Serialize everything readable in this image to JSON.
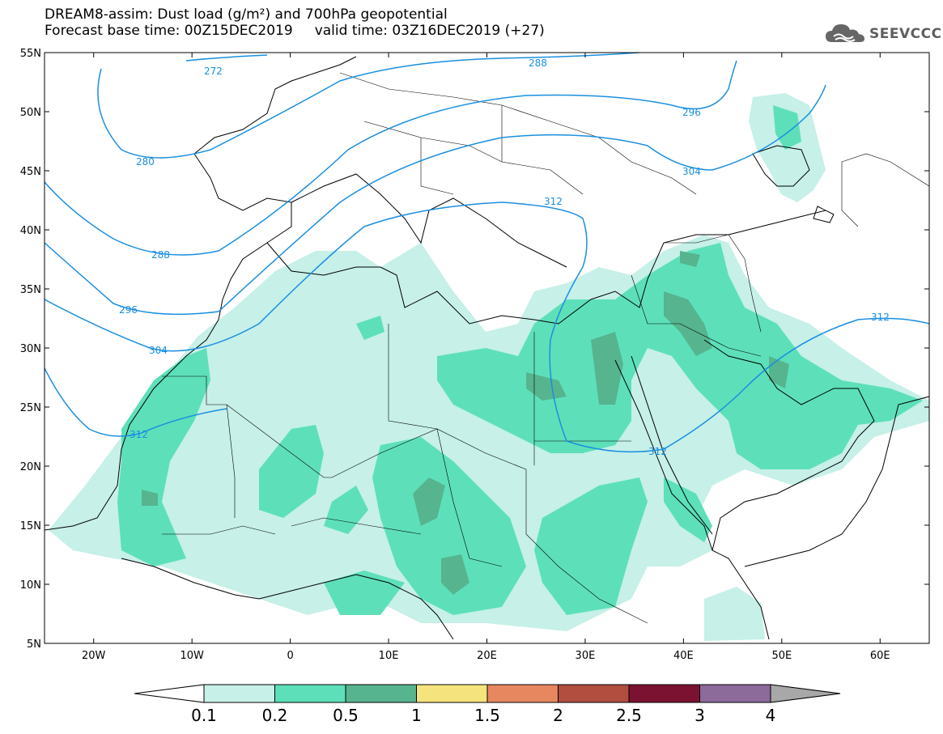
{
  "title": {
    "line1": "DREAM8-assim: Dust load (g/m²) and 700hPa geopotential",
    "line2": "Forecast base time: 00Z15DEC2019     valid time: 03Z16DEC2019 (+27)"
  },
  "logo": {
    "text": "SEEVCCC",
    "icon": "cloud-icon"
  },
  "map": {
    "lon_range": [
      -25,
      65
    ],
    "lat_range": [
      5,
      55
    ],
    "lat_ticks": [
      "55N",
      "50N",
      "45N",
      "40N",
      "35N",
      "30N",
      "25N",
      "20N",
      "15N",
      "10N",
      "5N"
    ],
    "lon_ticks": [
      "20W",
      "10W",
      "0",
      "10E",
      "20E",
      "30E",
      "40E",
      "50E",
      "60E"
    ],
    "contour_labels": [
      "272",
      "280",
      "288",
      "296",
      "304",
      "312",
      "288",
      "296",
      "304",
      "312",
      "312",
      "312"
    ],
    "contour_color": "#1a8fe0"
  },
  "colorbar": {
    "labels": [
      "0.1",
      "0.2",
      "0.5",
      "1",
      "1.5",
      "2",
      "2.5",
      "3",
      "4"
    ],
    "colors": [
      "#c6f0e8",
      "#5de0b9",
      "#56b48e",
      "#f5e37d",
      "#e6875f",
      "#b14e40",
      "#7b1232",
      "#8c6a9a"
    ],
    "under_color": "#ffffff",
    "over_color": "#a8a8a8"
  },
  "dust_colors": {
    "light": "#c6f0e8",
    "medium": "#5de0b9",
    "dark": "#56b48e"
  }
}
